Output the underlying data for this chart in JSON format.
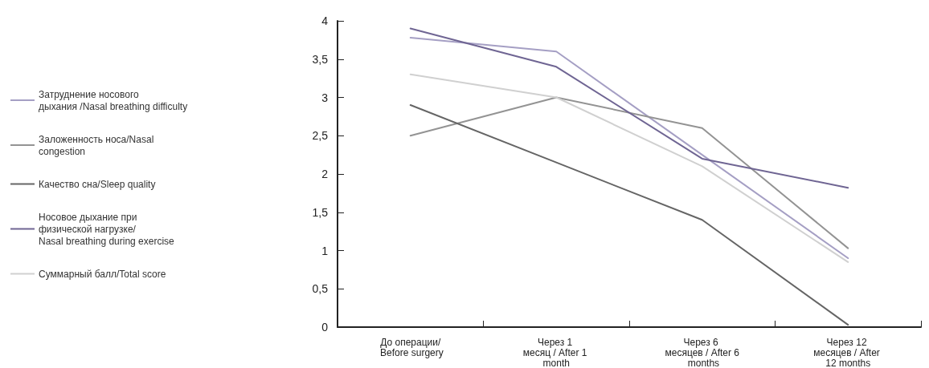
{
  "chart_data": {
    "type": "line",
    "categories": [
      "До операции/ Before surgery",
      "Через 1 месяц / After 1 month",
      "Через 6 месяцев / After 6 months",
      "Через 12 месяцев / After 12 months"
    ],
    "series": [
      {
        "name": "Затруднение носового дыхания /Nasal breathing difficulty",
        "color": "#a59fc4",
        "values": [
          3.78,
          3.6,
          2.25,
          0.9
        ]
      },
      {
        "name": "Заложенность носа/Nasal congestion",
        "color": "#939393",
        "values": [
          2.5,
          3.0,
          2.6,
          1.03
        ]
      },
      {
        "name": "Качество сна/Sleep quality",
        "color": "#656565",
        "values": [
          2.9,
          2.15,
          1.4,
          0.03
        ]
      },
      {
        "name": "Носовое дыхание при физической нагрузке/Nasal breathing during exercise",
        "color": "#6f6593",
        "values": [
          3.9,
          3.4,
          2.2,
          1.82
        ]
      },
      {
        "name": "Суммарный балл/Total score",
        "color": "#d0d0d0",
        "values": [
          3.3,
          3.0,
          2.1,
          0.85
        ]
      }
    ],
    "ylim": [
      0,
      4
    ],
    "yticks": [
      0,
      {
        "value": 0.5,
        "label": "0,5"
      },
      1,
      {
        "value": 1.5,
        "label": "1,5"
      },
      2,
      {
        "value": 2.5,
        "label": "2,5"
      },
      3,
      {
        "value": 3.5,
        "label": "3,5"
      },
      4
    ],
    "grid": false,
    "legend": "left",
    "marker": "none",
    "line_style": "solid"
  }
}
